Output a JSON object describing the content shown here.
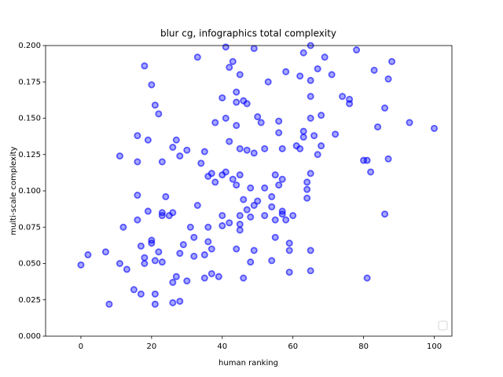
{
  "chart_data": {
    "type": "scatter",
    "title": "blur cg, infographics total complexity",
    "x_label": "human ranking",
    "y_label": "multi-scale complexity",
    "xlim": [
      -10,
      105
    ],
    "ylim": [
      0,
      0.2
    ],
    "xticks": [
      0,
      20,
      40,
      60,
      80,
      100
    ],
    "yticks": [
      {
        "value": 0,
        "label": "0.000"
      },
      {
        "value": 0.025,
        "label": "0.025"
      },
      {
        "value": 0.05,
        "label": "0.050"
      },
      {
        "value": 0.075,
        "label": "0.075"
      },
      {
        "value": 0.1,
        "label": "0.100"
      },
      {
        "value": 0.125,
        "label": "0.125"
      },
      {
        "value": 0.15,
        "label": "0.150"
      },
      {
        "value": 0.175,
        "label": "0.175"
      },
      {
        "value": 0.2,
        "label": "0.200"
      }
    ],
    "color": "#0000ff",
    "x": [
      0,
      2,
      7,
      8,
      11,
      11,
      12,
      13,
      15,
      16,
      16,
      16,
      16,
      17,
      17,
      18,
      18,
      18,
      19,
      19,
      20,
      20,
      20,
      21,
      21,
      21,
      21,
      22,
      22,
      23,
      23,
      23,
      23,
      24,
      25,
      26,
      26,
      26,
      26,
      27,
      27,
      28,
      28,
      28,
      29,
      30,
      30,
      31,
      32,
      32,
      33,
      33,
      34,
      35,
      35,
      35,
      36,
      36,
      36,
      37,
      37,
      37,
      38,
      38,
      39,
      40,
      40,
      40,
      40,
      41,
      41,
      41,
      42,
      42,
      42,
      43,
      43,
      44,
      44,
      44,
      44,
      44,
      45,
      45,
      45,
      45,
      45,
      45,
      46,
      46,
      46,
      47,
      47,
      47,
      48,
      48,
      48,
      49,
      49,
      49,
      49,
      50,
      50,
      51,
      52,
      52,
      52,
      53,
      54,
      54,
      54,
      55,
      55,
      55,
      56,
      56,
      56,
      57,
      57,
      57,
      57,
      58,
      58,
      59,
      59,
      59,
      60,
      61,
      62,
      62,
      63,
      63,
      63,
      64,
      64,
      64,
      65,
      65,
      65,
      65,
      65,
      65,
      65,
      66,
      67,
      67,
      68,
      68,
      69,
      71,
      72,
      74,
      76,
      76,
      78,
      80,
      81,
      81,
      82,
      83,
      84,
      86,
      86,
      87,
      87,
      88,
      93,
      100
    ],
    "values": [
      0.049,
      0.056,
      0.058,
      0.022,
      0.124,
      0.05,
      0.075,
      0.046,
      0.032,
      0.138,
      0.12,
      0.097,
      0.08,
      0.029,
      0.062,
      0.186,
      0.054,
      0.05,
      0.135,
      0.086,
      0.173,
      0.064,
      0.066,
      0.159,
      0.052,
      0.022,
      0.029,
      0.153,
      0.058,
      0.12,
      0.085,
      0.083,
      0.051,
      0.096,
      0.083,
      0.13,
      0.085,
      0.037,
      0.023,
      0.135,
      0.041,
      0.124,
      0.057,
      0.024,
      0.063,
      0.128,
      0.038,
      0.075,
      0.068,
      0.055,
      0.192,
      0.09,
      0.119,
      0.127,
      0.056,
      0.04,
      0.11,
      0.075,
      0.065,
      0.112,
      0.06,
      0.043,
      0.147,
      0.106,
      0.041,
      0.164,
      0.111,
      0.083,
      0.076,
      0.199,
      0.15,
      0.113,
      0.185,
      0.134,
      0.078,
      0.189,
      0.108,
      0.168,
      0.161,
      0.145,
      0.104,
      0.06,
      0.18,
      0.129,
      0.111,
      0.083,
      0.077,
      0.073,
      0.162,
      0.094,
      0.04,
      0.16,
      0.128,
      0.087,
      0.102,
      0.082,
      0.051,
      0.198,
      0.126,
      0.09,
      0.059,
      0.151,
      0.093,
      0.147,
      0.129,
      0.102,
      0.083,
      0.175,
      0.096,
      0.089,
      0.052,
      0.111,
      0.08,
      0.068,
      0.148,
      0.14,
      0.104,
      0.129,
      0.108,
      0.086,
      0.084,
      0.182,
      0.08,
      0.064,
      0.059,
      0.044,
      0.083,
      0.131,
      0.179,
      0.129,
      0.195,
      0.141,
      0.137,
      0.106,
      0.101,
      0.095,
      0.2,
      0.176,
      0.165,
      0.15,
      0.112,
      0.059,
      0.045,
      0.138,
      0.184,
      0.125,
      0.152,
      0.131,
      0.192,
      0.18,
      0.139,
      0.165,
      0.163,
      0.16,
      0.197,
      0.121,
      0.121,
      0.04,
      0.113,
      0.183,
      0.144,
      0.157,
      0.084,
      0.177,
      0.122,
      0.189,
      0.147,
      0.143
    ]
  }
}
